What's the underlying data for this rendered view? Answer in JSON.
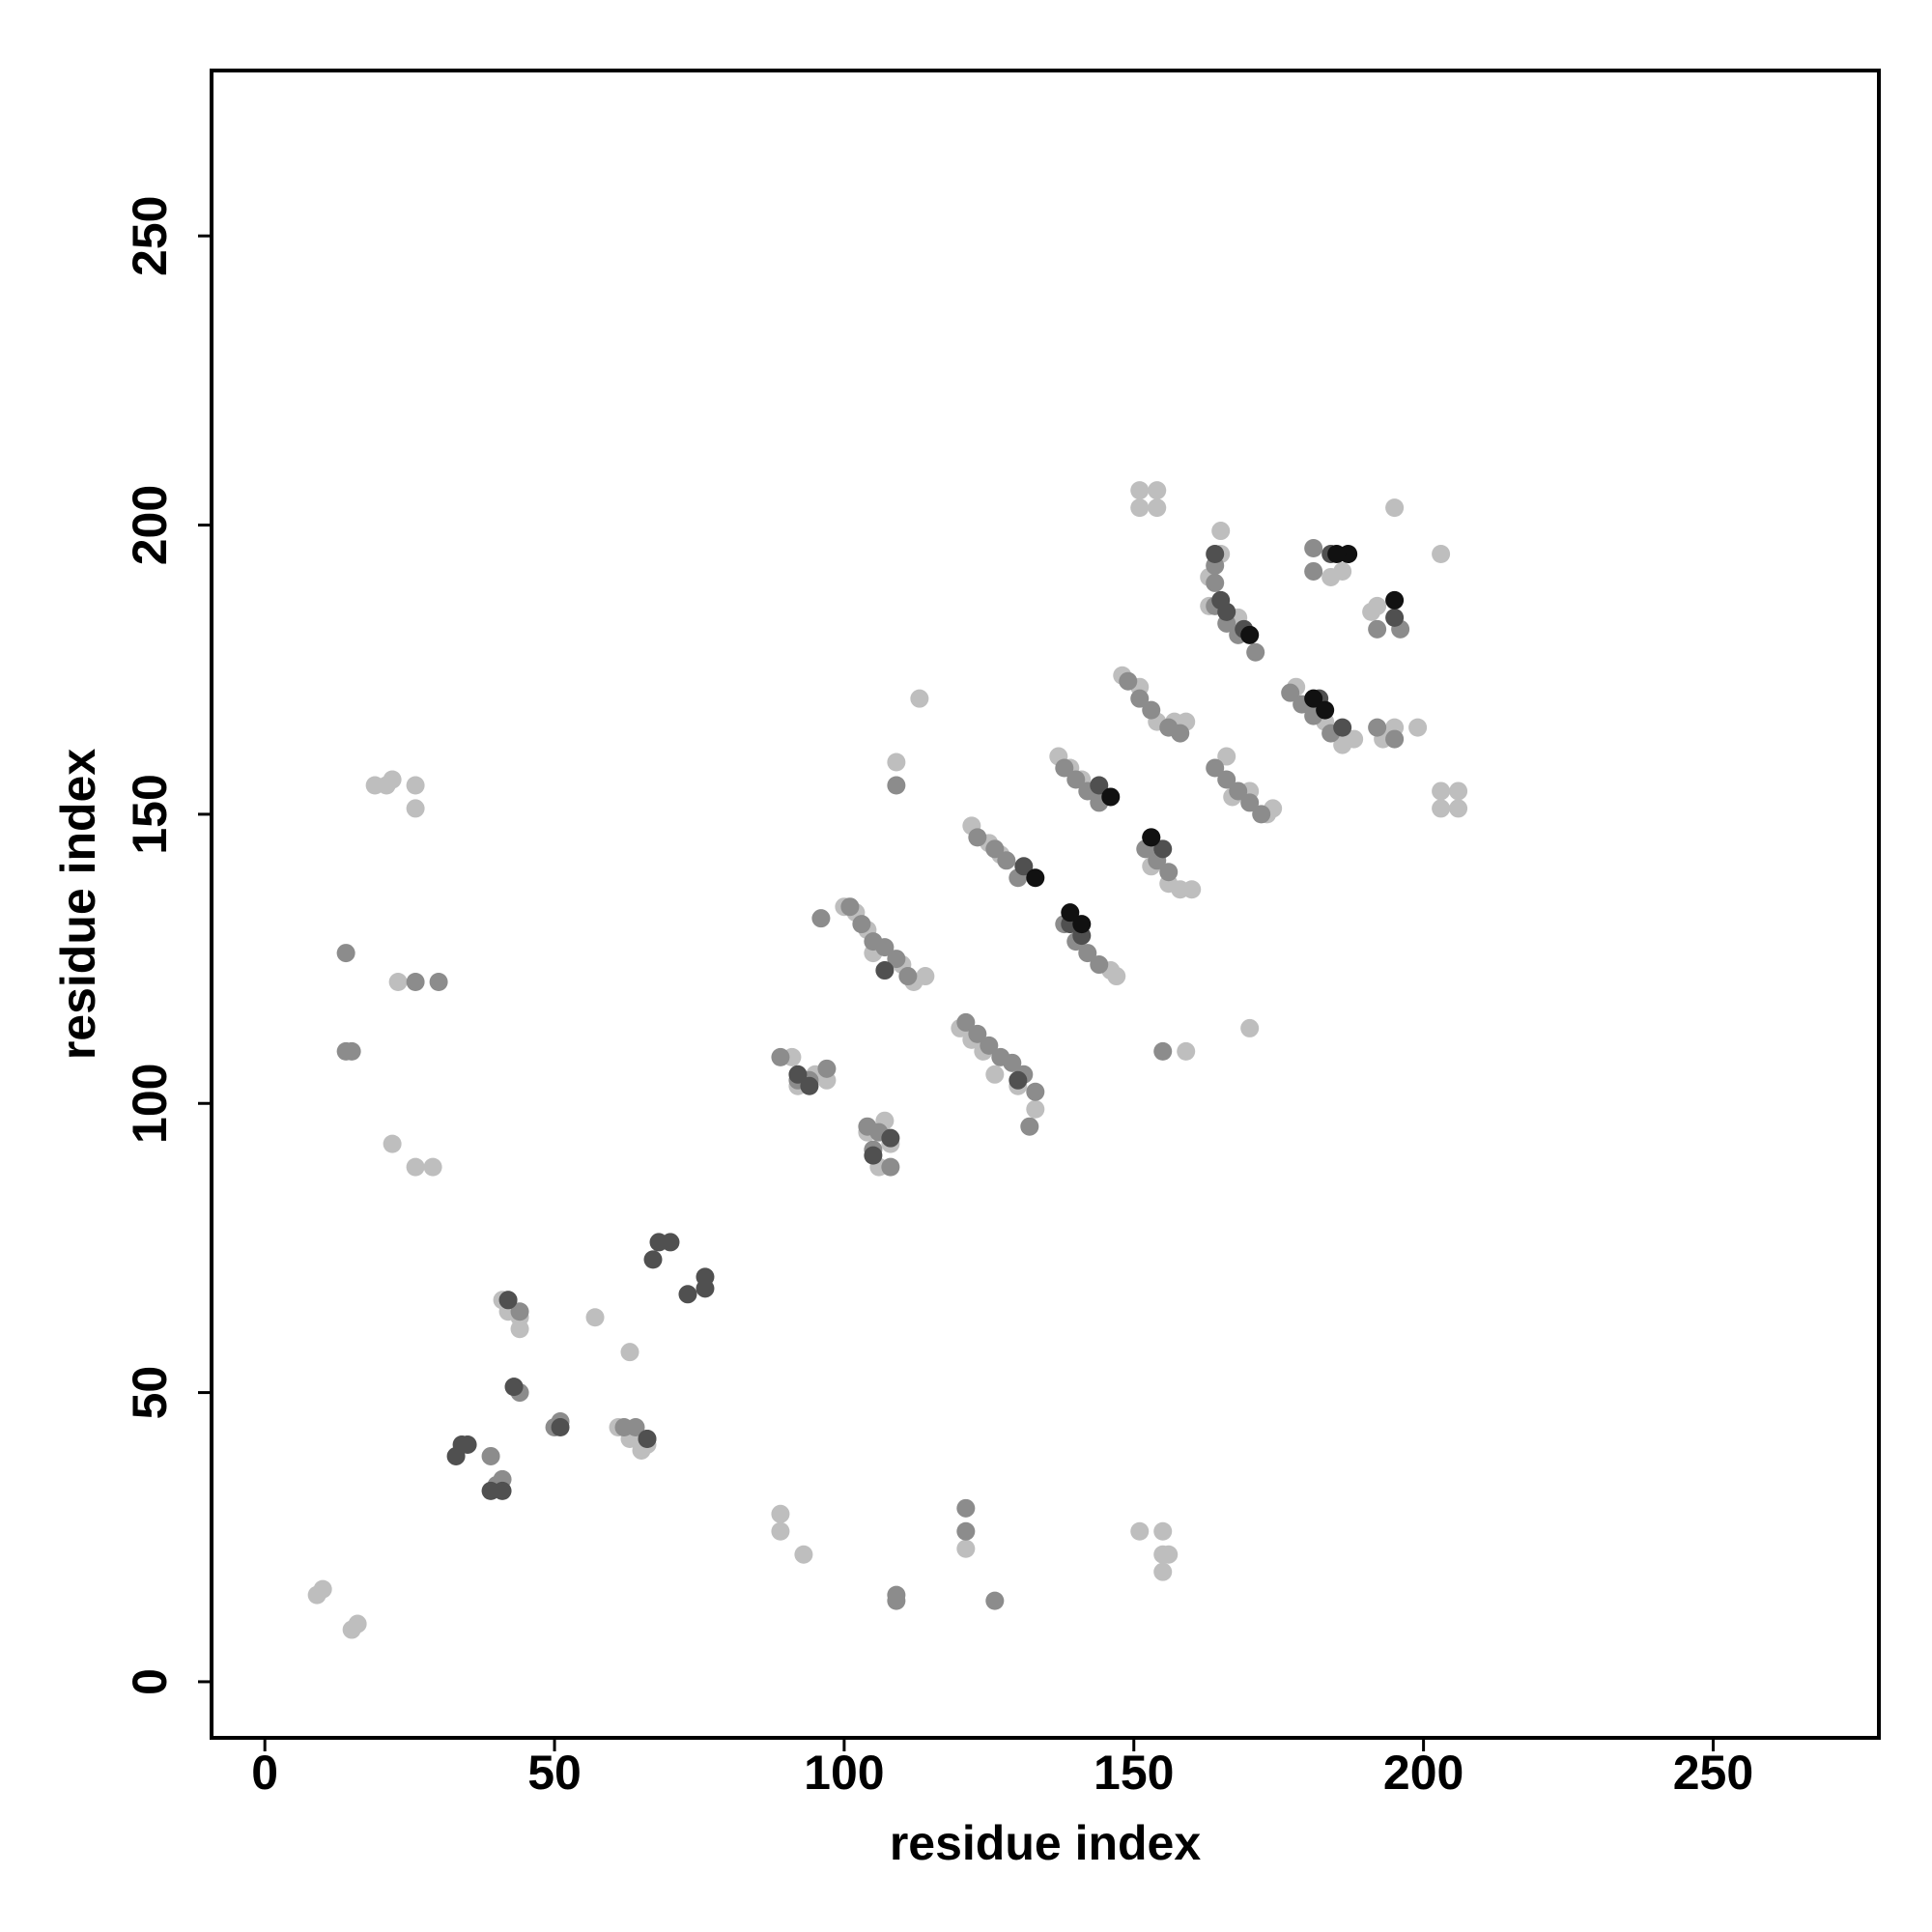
{
  "chart_data": {
    "type": "scatter",
    "xlabel": "residue index",
    "ylabel": "residue index",
    "xlim": [
      -9.2,
      278.6
    ],
    "ylim": [
      -9.7,
      278.6
    ],
    "xticks": [
      0,
      50,
      100,
      150,
      200,
      250
    ],
    "yticks": [
      0,
      50,
      100,
      150,
      200,
      250
    ],
    "grid": false,
    "series": [
      {
        "color": "#bebebe",
        "x": [
          9,
          10,
          15,
          16,
          19,
          21,
          22,
          26,
          26,
          23,
          22,
          26,
          29,
          41,
          42,
          44,
          44,
          57,
          63,
          61,
          63,
          65,
          66,
          89,
          89,
          93,
          91,
          92,
          95,
          97,
          104,
          106,
          107,
          108,
          100,
          102,
          104,
          105,
          110,
          112,
          114,
          109,
          113,
          121,
          120,
          122,
          124,
          126,
          130,
          133,
          122,
          125,
          127,
          137,
          139,
          141,
          146,
          147,
          148,
          151,
          154,
          157,
          159,
          151,
          151,
          154,
          154,
          151,
          155,
          155,
          155,
          156,
          153,
          156,
          158,
          160,
          159,
          170,
          163,
          165,
          165,
          163,
          168,
          170,
          166,
          167,
          170,
          173,
          174,
          178,
          183,
          186,
          188,
          184,
          186,
          191,
          192,
          193,
          195,
          199,
          195,
          203,
          203,
          203,
          206,
          206
        ],
        "values": [
          15,
          16,
          9,
          10,
          155,
          155,
          156,
          155,
          151,
          121,
          93,
          89,
          89,
          66,
          64,
          63,
          61,
          63,
          57,
          44,
          42,
          40,
          41,
          29,
          26,
          22,
          108,
          103,
          105,
          104,
          95,
          89,
          97,
          93,
          134,
          133,
          130,
          126,
          124,
          121,
          122,
          159,
          170,
          23,
          113,
          111,
          109,
          105,
          103,
          99,
          148,
          145,
          143,
          160,
          158,
          156,
          123,
          122,
          174,
          172,
          166,
          166,
          166,
          206,
          203,
          206,
          203,
          26,
          26,
          22,
          19,
          22,
          141,
          138,
          137,
          137,
          109,
          113,
          186,
          199,
          195,
          191,
          184,
          181,
          160,
          153,
          154,
          150,
          151,
          172,
          166,
          162,
          163,
          191,
          192,
          185,
          186,
          163,
          165,
          165,
          203,
          195,
          154,
          151,
          154,
          151
        ]
      },
      {
        "color": "#8c8c8c",
        "x": [
          14,
          14,
          15,
          26,
          30,
          43,
          44,
          50,
          51,
          39,
          40,
          41,
          42,
          44,
          62,
          64,
          66,
          89,
          92,
          94,
          97,
          104,
          105,
          106,
          108,
          96,
          101,
          103,
          105,
          107,
          109,
          111,
          109,
          121,
          121,
          126,
          109,
          109,
          121,
          123,
          125,
          127,
          129,
          131,
          133,
          132,
          123,
          126,
          128,
          130,
          138,
          140,
          142,
          144,
          138,
          140,
          142,
          144,
          149,
          151,
          153,
          156,
          158,
          152,
          154,
          156,
          155,
          164,
          164,
          164,
          166,
          168,
          171,
          164,
          166,
          168,
          170,
          172,
          177,
          179,
          181,
          184,
          181,
          181,
          192,
          192,
          195,
          196
        ],
        "values": [
          126,
          109,
          109,
          121,
          121,
          51,
          50,
          44,
          45,
          39,
          34,
          35,
          66,
          64,
          44,
          44,
          42,
          108,
          104,
          104,
          106,
          96,
          92,
          95,
          89,
          132,
          134,
          131,
          128,
          127,
          125,
          122,
          155,
          30,
          26,
          14,
          15,
          14,
          114,
          112,
          110,
          108,
          107,
          105,
          102,
          96,
          146,
          144,
          142,
          139,
          131,
          128,
          126,
          124,
          158,
          156,
          154,
          152,
          173,
          170,
          168,
          165,
          164,
          144,
          142,
          140,
          109,
          193,
          190,
          186,
          183,
          181,
          178,
          158,
          156,
          154,
          152,
          150,
          171,
          169,
          167,
          164,
          196,
          192,
          182,
          165,
          163,
          182
        ]
      },
      {
        "color": "#505050",
        "x": [
          33,
          34,
          35,
          39,
          41,
          43,
          51,
          42,
          67,
          68,
          73,
          76,
          66,
          92,
          94,
          105,
          107,
          108,
          130,
          131,
          139,
          141,
          144,
          153,
          155,
          164,
          165,
          166,
          169,
          182,
          186,
          195,
          184,
          70,
          76
        ],
        "values": [
          39,
          41,
          41,
          33,
          33,
          51,
          44,
          66,
          73,
          76,
          67,
          68,
          42,
          105,
          103,
          91,
          123,
          94,
          104,
          141,
          131,
          129,
          155,
          146,
          144,
          195,
          187,
          185,
          182,
          170,
          165,
          184,
          195,
          76,
          70
        ]
      },
      {
        "color": "#111111",
        "x": [
          133,
          139,
          141,
          146,
          153,
          170,
          181,
          183,
          187,
          195,
          185
        ],
        "values": [
          139,
          133,
          131,
          153,
          146,
          181,
          170,
          168,
          195,
          187,
          195
        ]
      }
    ]
  }
}
